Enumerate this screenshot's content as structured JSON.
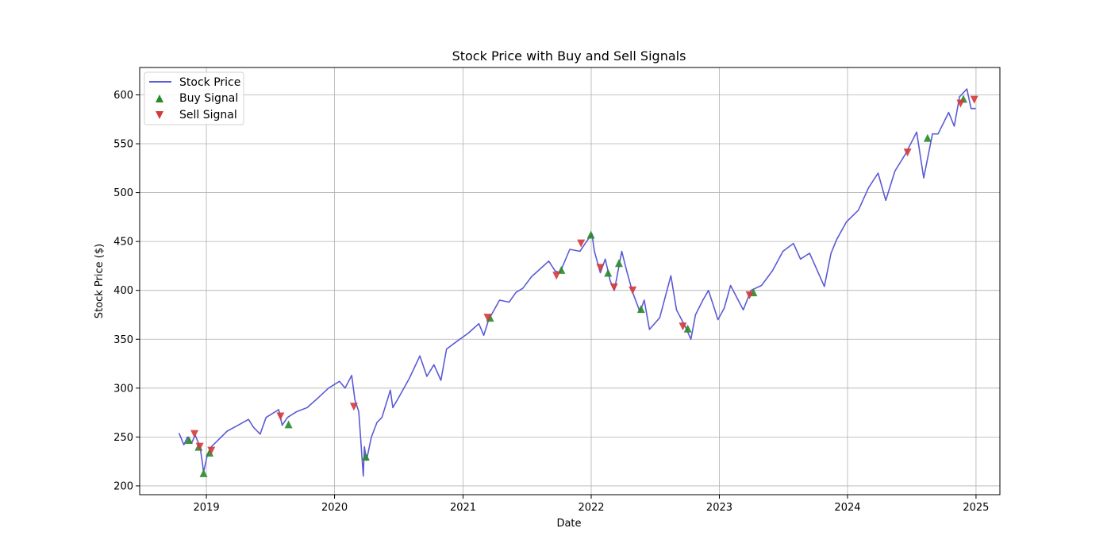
{
  "chart_data": {
    "type": "line",
    "title": "Stock Price with Buy and Sell Signals",
    "xlabel": "Date",
    "ylabel": "Stock Price ($)",
    "x_ticks": [
      "2019",
      "2020",
      "2021",
      "2022",
      "2023",
      "2024",
      "2025"
    ],
    "y_ticks": [
      200,
      250,
      300,
      350,
      400,
      450,
      500,
      550,
      600
    ],
    "xlim": [
      "2018-06-25",
      "2025-03-10"
    ],
    "ylim": [
      191,
      628
    ],
    "grid": true,
    "legend_position": "upper-left",
    "colors": {
      "price": "#5b5bd6",
      "buy": "#2a8a2a",
      "sell": "#d33b3b",
      "grid": "#b0b0b0"
    },
    "legend": [
      {
        "label": "Stock Price",
        "marker": "line"
      },
      {
        "label": "Buy Signal",
        "marker": "triangle-up"
      },
      {
        "label": "Sell Signal",
        "marker": "triangle-down"
      }
    ],
    "series": [
      {
        "name": "Stock Price",
        "points": [
          [
            "2018-10-15",
            254
          ],
          [
            "2018-10-29",
            242
          ],
          [
            "2018-11-08",
            250
          ],
          [
            "2018-11-20",
            244
          ],
          [
            "2018-11-30",
            252
          ],
          [
            "2018-12-07",
            246
          ],
          [
            "2018-12-14",
            240
          ],
          [
            "2018-12-20",
            225
          ],
          [
            "2018-12-24",
            214
          ],
          [
            "2019-01-04",
            232
          ],
          [
            "2019-01-15",
            240
          ],
          [
            "2019-02-01",
            246
          ],
          [
            "2019-03-01",
            256
          ],
          [
            "2019-04-01",
            262
          ],
          [
            "2019-05-01",
            268
          ],
          [
            "2019-05-15",
            260
          ],
          [
            "2019-06-03",
            253
          ],
          [
            "2019-06-20",
            270
          ],
          [
            "2019-07-26",
            278
          ],
          [
            "2019-08-05",
            262
          ],
          [
            "2019-08-20",
            270
          ],
          [
            "2019-09-15",
            276
          ],
          [
            "2019-10-15",
            280
          ],
          [
            "2019-11-15",
            290
          ],
          [
            "2019-12-15",
            300
          ],
          [
            "2020-01-15",
            307
          ],
          [
            "2020-01-31",
            300
          ],
          [
            "2020-02-19",
            313
          ],
          [
            "2020-02-28",
            288
          ],
          [
            "2020-03-10",
            276
          ],
          [
            "2020-03-23",
            210
          ],
          [
            "2020-03-26",
            240
          ],
          [
            "2020-04-01",
            226
          ],
          [
            "2020-04-15",
            250
          ],
          [
            "2020-05-01",
            265
          ],
          [
            "2020-05-15",
            270
          ],
          [
            "2020-06-08",
            298
          ],
          [
            "2020-06-15",
            280
          ],
          [
            "2020-07-01",
            290
          ],
          [
            "2020-08-01",
            310
          ],
          [
            "2020-08-31",
            333
          ],
          [
            "2020-09-20",
            312
          ],
          [
            "2020-10-10",
            324
          ],
          [
            "2020-10-30",
            308
          ],
          [
            "2020-11-15",
            340
          ],
          [
            "2020-12-15",
            348
          ],
          [
            "2021-01-15",
            356
          ],
          [
            "2021-02-15",
            366
          ],
          [
            "2021-03-01",
            354
          ],
          [
            "2021-03-15",
            370
          ],
          [
            "2021-04-15",
            390
          ],
          [
            "2021-05-12",
            388
          ],
          [
            "2021-06-01",
            398
          ],
          [
            "2021-06-20",
            402
          ],
          [
            "2021-07-15",
            414
          ],
          [
            "2021-08-15",
            424
          ],
          [
            "2021-09-02",
            430
          ],
          [
            "2021-09-20",
            420
          ],
          [
            "2021-10-04",
            418
          ],
          [
            "2021-11-01",
            442
          ],
          [
            "2021-11-30",
            440
          ],
          [
            "2021-12-15",
            448
          ],
          [
            "2022-01-03",
            458
          ],
          [
            "2022-01-10",
            440
          ],
          [
            "2022-01-27",
            418
          ],
          [
            "2022-02-10",
            432
          ],
          [
            "2022-02-24",
            410
          ],
          [
            "2022-03-08",
            400
          ],
          [
            "2022-03-29",
            440
          ],
          [
            "2022-04-12",
            420
          ],
          [
            "2022-04-29",
            398
          ],
          [
            "2022-05-20",
            378
          ],
          [
            "2022-06-01",
            390
          ],
          [
            "2022-06-16",
            360
          ],
          [
            "2022-07-15",
            372
          ],
          [
            "2022-08-16",
            415
          ],
          [
            "2022-09-01",
            380
          ],
          [
            "2022-09-30",
            360
          ],
          [
            "2022-10-12",
            350
          ],
          [
            "2022-10-25",
            375
          ],
          [
            "2022-11-15",
            390
          ],
          [
            "2022-12-01",
            400
          ],
          [
            "2022-12-28",
            370
          ],
          [
            "2023-01-15",
            382
          ],
          [
            "2023-02-02",
            405
          ],
          [
            "2023-03-10",
            380
          ],
          [
            "2023-04-01",
            400
          ],
          [
            "2023-05-01",
            405
          ],
          [
            "2023-06-01",
            420
          ],
          [
            "2023-07-01",
            440
          ],
          [
            "2023-07-31",
            448
          ],
          [
            "2023-08-20",
            432
          ],
          [
            "2023-09-15",
            438
          ],
          [
            "2023-10-27",
            404
          ],
          [
            "2023-11-15",
            438
          ],
          [
            "2023-12-01",
            452
          ],
          [
            "2023-12-29",
            470
          ],
          [
            "2024-02-01",
            482
          ],
          [
            "2024-03-01",
            505
          ],
          [
            "2024-03-28",
            520
          ],
          [
            "2024-04-19",
            492
          ],
          [
            "2024-05-15",
            522
          ],
          [
            "2024-06-15",
            540
          ],
          [
            "2024-07-16",
            562
          ],
          [
            "2024-08-05",
            515
          ],
          [
            "2024-08-30",
            560
          ],
          [
            "2024-09-15",
            560
          ],
          [
            "2024-10-15",
            582
          ],
          [
            "2024-10-31",
            568
          ],
          [
            "2024-11-15",
            598
          ],
          [
            "2024-12-06",
            606
          ],
          [
            "2024-12-18",
            586
          ],
          [
            "2024-12-31",
            586
          ]
        ]
      },
      {
        "name": "Buy Signal",
        "points": [
          [
            "2018-11-12",
            247
          ],
          [
            "2018-12-10",
            240
          ],
          [
            "2018-12-24",
            213
          ],
          [
            "2019-01-10",
            234
          ],
          [
            "2019-08-23",
            263
          ],
          [
            "2020-03-30",
            230
          ],
          [
            "2021-03-19",
            372
          ],
          [
            "2021-10-08",
            421
          ],
          [
            "2021-12-31",
            457
          ],
          [
            "2022-02-18",
            418
          ],
          [
            "2022-03-21",
            428
          ],
          [
            "2022-05-23",
            381
          ],
          [
            "2022-10-03",
            361
          ],
          [
            "2023-04-08",
            398
          ],
          [
            "2024-08-16",
            556
          ],
          [
            "2024-11-26",
            596
          ]
        ]
      },
      {
        "name": "Sell Signal",
        "points": [
          [
            "2018-11-28",
            253
          ],
          [
            "2018-12-13",
            240
          ],
          [
            "2019-01-15",
            236
          ],
          [
            "2019-07-31",
            271
          ],
          [
            "2020-02-25",
            281
          ],
          [
            "2021-03-12",
            372
          ],
          [
            "2021-09-24",
            415
          ],
          [
            "2021-12-03",
            448
          ],
          [
            "2022-01-27",
            423
          ],
          [
            "2022-03-07",
            403
          ],
          [
            "2022-04-29",
            400
          ],
          [
            "2022-09-19",
            363
          ],
          [
            "2023-03-28",
            395
          ],
          [
            "2024-06-20",
            541
          ],
          [
            "2024-11-18",
            591
          ],
          [
            "2024-12-27",
            595
          ]
        ]
      }
    ]
  }
}
